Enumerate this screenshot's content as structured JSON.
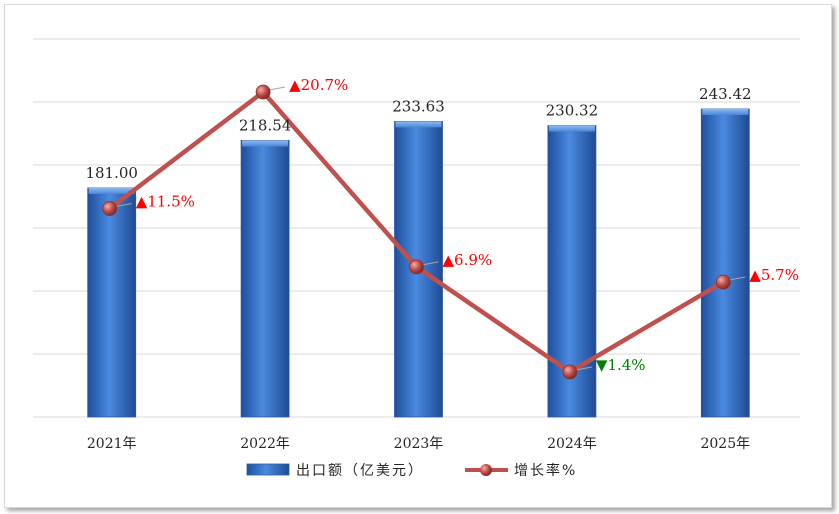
{
  "chart_data": {
    "type": "bar",
    "categories": [
      "2021年",
      "2022年",
      "2023年",
      "2024年",
      "2025年"
    ],
    "series": [
      {
        "name": "出口额（亿美元）",
        "type": "bar",
        "values": [
          181.0,
          218.54,
          233.63,
          230.32,
          243.42
        ],
        "labels": [
          "181.00",
          "218.54",
          "233.63",
          "230.32",
          "243.42"
        ]
      },
      {
        "name": "增长率%",
        "type": "line",
        "values": [
          11.5,
          20.7,
          6.9,
          -1.4,
          5.7
        ],
        "labels": [
          "11.5%",
          "20.7%",
          "6.9%",
          "1.4%",
          "5.7%"
        ],
        "directions": [
          "up",
          "up",
          "up",
          "down",
          "up"
        ]
      }
    ],
    "legend_position": "bottom",
    "grid": true,
    "colors": {
      "bar": "#3f7fd6",
      "line": "#c0504d",
      "up": "#ff0000",
      "down": "#008000"
    }
  }
}
